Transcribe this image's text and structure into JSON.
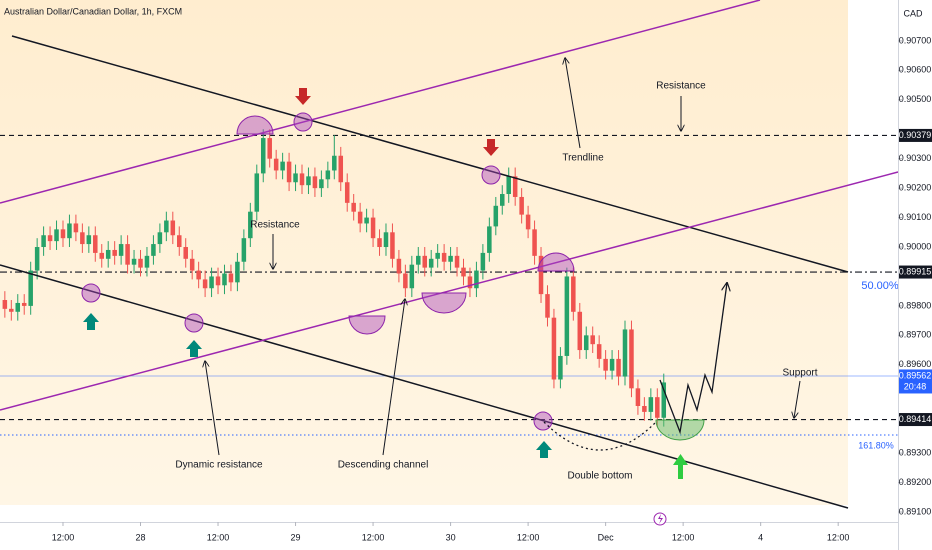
{
  "chart_data": {
    "type": "candlestick",
    "title": "Australian Dollar/Canadian Dollar, 1h, FXCM",
    "currency": "CAD",
    "up_color": "#26a269",
    "down_color": "#ef5350",
    "xlim": [
      2.25,
      141.26
    ],
    "xticks": [
      {
        "value": 12,
        "label": "12:00"
      },
      {
        "value": 24,
        "label": "28"
      },
      {
        "value": 36,
        "label": "12:00"
      },
      {
        "value": 48,
        "label": "29"
      },
      {
        "value": 60,
        "label": "12:00"
      },
      {
        "value": 72,
        "label": "30"
      },
      {
        "value": 84,
        "label": "12:00"
      },
      {
        "value": 96,
        "label": "Dec"
      },
      {
        "value": 108,
        "label": "12:00"
      },
      {
        "value": 120,
        "label": "4"
      },
      {
        "value": 132,
        "label": "12:00"
      }
    ],
    "ylim": [
      0.89066,
      0.90839
    ],
    "yticks": [
      {
        "value": 0.907,
        "label": "0.90700"
      },
      {
        "value": 0.906,
        "label": "0.90600"
      },
      {
        "value": 0.905,
        "label": "0.90500"
      },
      {
        "value": 0.903,
        "label": "0.90300"
      },
      {
        "value": 0.902,
        "label": "0.90200"
      },
      {
        "value": 0.901,
        "label": "0.90100"
      },
      {
        "value": 0.9,
        "label": "0.90000"
      },
      {
        "value": 0.898,
        "label": "0.89800"
      },
      {
        "value": 0.897,
        "label": "0.89700"
      },
      {
        "value": 0.896,
        "label": "0.89600"
      },
      {
        "value": 0.893,
        "label": "0.89300"
      },
      {
        "value": 0.892,
        "label": "0.89200"
      },
      {
        "value": 0.891,
        "label": "0.89100"
      }
    ],
    "levels": [
      {
        "value": 0.90379,
        "label": "0.90379",
        "color": "#131722",
        "style": "dashed"
      },
      {
        "value": 0.89915,
        "label": "0.89915",
        "color": "#131722",
        "style": "dashdot"
      },
      {
        "value": 0.89562,
        "label": "0.89562",
        "color": "#2962ff",
        "style": "solid",
        "countdown": "20:48"
      },
      {
        "value": 0.89414,
        "label": "0.89414",
        "color": "#131722",
        "style": "dashed"
      }
    ],
    "annotations": [
      "Resistance",
      "Trendline",
      "Resistance",
      "Dynamic resistance",
      "Descending channel",
      "Double bottom",
      "Support",
      "50.00%",
      "161.80%"
    ],
    "x": [
      3,
      4,
      5,
      6,
      7,
      8,
      9,
      10,
      11,
      12,
      13,
      14,
      15,
      16,
      17,
      18,
      19,
      20,
      21,
      22,
      23,
      24,
      25,
      26,
      27,
      28,
      29,
      30,
      31,
      32,
      33,
      34,
      35,
      36,
      37,
      38,
      39,
      40,
      41,
      42,
      43,
      44,
      45,
      46,
      47,
      48,
      49,
      50,
      51,
      52,
      53,
      54,
      55,
      56,
      57,
      58,
      59,
      60,
      61,
      62,
      63,
      64,
      65,
      66,
      67,
      68,
      69,
      70,
      71,
      72,
      73,
      74,
      75,
      76,
      77,
      78,
      79,
      80,
      81,
      82,
      83,
      84,
      85,
      86,
      87,
      88,
      89,
      90,
      91,
      92,
      93,
      94,
      95,
      96,
      97,
      98,
      99,
      100,
      101,
      102,
      103,
      104,
      105
    ],
    "open": [
      0.8982,
      0.8979,
      0.8978,
      0.8981,
      0.898,
      0.8992,
      0.9,
      0.9004,
      0.9002,
      0.9006,
      0.9003,
      0.9008,
      0.9005,
      0.9001,
      0.9004,
      0.8998,
      0.8996,
      0.8999,
      0.8997,
      0.9001,
      0.8994,
      0.8996,
      0.8993,
      0.8997,
      0.9001,
      0.9005,
      0.9009,
      0.9004,
      0.9,
      0.8996,
      0.8992,
      0.8989,
      0.8986,
      0.899,
      0.8987,
      0.8991,
      0.8988,
      0.8995,
      0.9003,
      0.9012,
      0.9025,
      0.9037,
      0.903,
      0.9026,
      0.9029,
      0.9022,
      0.9025,
      0.9021,
      0.9024,
      0.902,
      0.9023,
      0.9026,
      0.9031,
      0.9022,
      0.9015,
      0.9012,
      0.9008,
      0.901,
      0.9003,
      0.9,
      0.9005,
      0.8996,
      0.8991,
      0.8986,
      0.8994,
      0.8997,
      0.8993,
      0.8996,
      0.8998,
      0.8995,
      0.8997,
      0.8993,
      0.899,
      0.8986,
      0.8992,
      0.8998,
      0.9007,
      0.9014,
      0.9018,
      0.9024,
      0.9017,
      0.9011,
      0.9006,
      0.8997,
      0.8984,
      0.8976,
      0.8955,
      0.8963,
      0.899,
      0.8978,
      0.8965,
      0.897,
      0.8967,
      0.8962,
      0.8958,
      0.8962,
      0.8956,
      0.8972,
      0.8952,
      0.8946,
      0.8944,
      0.8949,
      0.8942
    ],
    "high": [
      0.8985,
      0.8982,
      0.8984,
      0.8984,
      0.8995,
      0.9003,
      0.9007,
      0.9007,
      0.9009,
      0.9009,
      0.9011,
      0.9011,
      0.9008,
      0.9007,
      0.9007,
      0.9001,
      0.9002,
      0.9002,
      0.9004,
      0.9004,
      0.8999,
      0.8999,
      0.9,
      0.9004,
      0.9008,
      0.9012,
      0.9012,
      0.9007,
      0.9003,
      0.8999,
      0.8995,
      0.8992,
      0.8993,
      0.8993,
      0.8994,
      0.8994,
      0.8998,
      0.9006,
      0.9015,
      0.9028,
      0.904,
      0.904,
      0.9033,
      0.9032,
      0.9032,
      0.9028,
      0.9028,
      0.9027,
      0.9027,
      0.9026,
      0.9029,
      0.9038,
      0.9034,
      0.9025,
      0.9018,
      0.9015,
      0.9013,
      0.9013,
      0.9006,
      0.9008,
      0.9008,
      0.8999,
      0.8994,
      0.8997,
      0.9,
      0.9,
      0.8999,
      0.9001,
      0.9001,
      0.9,
      0.9,
      0.8996,
      0.8993,
      0.8995,
      0.9001,
      0.901,
      0.9017,
      0.9021,
      0.9027,
      0.9027,
      0.902,
      0.9014,
      0.9009,
      0.9,
      0.8987,
      0.8979,
      0.8966,
      0.8993,
      0.8993,
      0.8981,
      0.8973,
      0.8973,
      0.897,
      0.8965,
      0.8965,
      0.8965,
      0.8975,
      0.8975,
      0.8955,
      0.8949,
      0.8952,
      0.8952,
      0.8957
    ],
    "low": [
      0.8976,
      0.8975,
      0.8975,
      0.8977,
      0.8977,
      0.8989,
      0.8997,
      0.8999,
      0.8999,
      0.9,
      0.9,
      0.9002,
      0.8998,
      0.8998,
      0.8995,
      0.8993,
      0.8993,
      0.8994,
      0.8994,
      0.8991,
      0.8991,
      0.899,
      0.899,
      0.8994,
      0.8998,
      0.9002,
      0.9001,
      0.8997,
      0.8993,
      0.8989,
      0.8986,
      0.8983,
      0.8983,
      0.8984,
      0.8984,
      0.8985,
      0.8985,
      0.8992,
      0.9,
      0.9009,
      0.9022,
      0.9027,
      0.9023,
      0.9023,
      0.9019,
      0.9019,
      0.9018,
      0.9018,
      0.9017,
      0.9017,
      0.902,
      0.9023,
      0.9019,
      0.9012,
      0.9009,
      0.9005,
      0.9005,
      0.9,
      0.8997,
      0.8997,
      0.8993,
      0.8988,
      0.8983,
      0.8983,
      0.8991,
      0.899,
      0.899,
      0.8993,
      0.8992,
      0.8992,
      0.899,
      0.8987,
      0.8983,
      0.8983,
      0.8989,
      0.8995,
      0.9004,
      0.9011,
      0.9015,
      0.9014,
      0.9008,
      0.9003,
      0.8994,
      0.8981,
      0.8973,
      0.8952,
      0.8952,
      0.896,
      0.8975,
      0.8962,
      0.8962,
      0.8964,
      0.8959,
      0.8955,
      0.8955,
      0.8953,
      0.8953,
      0.8949,
      0.8943,
      0.8941,
      0.8941,
      0.8939,
      0.8939
    ],
    "close": [
      0.8979,
      0.8978,
      0.8981,
      0.898,
      0.8992,
      0.9,
      0.9004,
      0.9002,
      0.9006,
      0.9003,
      0.9008,
      0.9005,
      0.9001,
      0.9004,
      0.8998,
      0.8996,
      0.8999,
      0.8997,
      0.9001,
      0.8994,
      0.8996,
      0.8993,
      0.8997,
      0.9001,
      0.9005,
      0.9009,
      0.9004,
      0.9,
      0.8996,
      0.8992,
      0.8989,
      0.8986,
      0.899,
      0.8987,
      0.8991,
      0.8988,
      0.8995,
      0.9003,
      0.9012,
      0.9025,
      0.9037,
      0.903,
      0.9026,
      0.9029,
      0.9022,
      0.9025,
      0.9021,
      0.9024,
      0.902,
      0.9023,
      0.9026,
      0.9031,
      0.9022,
      0.9015,
      0.9012,
      0.9008,
      0.901,
      0.9003,
      0.9,
      0.9005,
      0.8996,
      0.8991,
      0.8986,
      0.8994,
      0.8997,
      0.8993,
      0.8996,
      0.8998,
      0.8995,
      0.8997,
      0.8993,
      0.899,
      0.8986,
      0.8992,
      0.8998,
      0.9007,
      0.9014,
      0.9018,
      0.9024,
      0.9017,
      0.9011,
      0.9006,
      0.8997,
      0.8984,
      0.8976,
      0.8955,
      0.8963,
      0.899,
      0.8978,
      0.8965,
      0.897,
      0.8967,
      0.8962,
      0.8958,
      0.8962,
      0.8956,
      0.8972,
      0.8952,
      0.8946,
      0.8944,
      0.8949,
      0.8942,
      0.8954
    ]
  }
}
